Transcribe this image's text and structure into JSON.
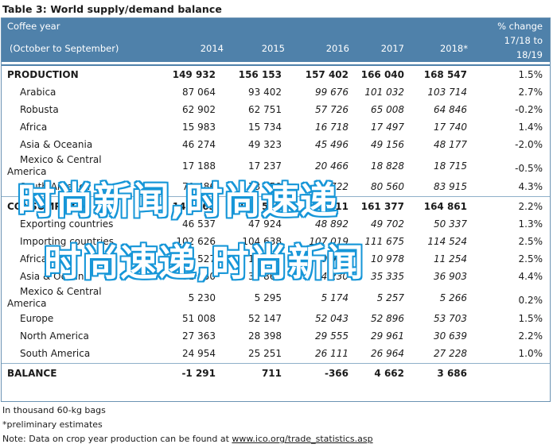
{
  "title": "Table 3:  World supply/demand balance",
  "header": {
    "left_top": "Coffee year",
    "left_bottom": "(October to September)",
    "years": [
      "2014",
      "2015",
      "2016",
      "2017",
      "2018*"
    ],
    "pct_top": "% change",
    "pct_mid": "17/18 to",
    "pct_bottom": "18/19"
  },
  "rows": [
    {
      "label": "PRODUCTION",
      "type": "head",
      "values": [
        "149 932",
        "156 153",
        "157 402",
        "166 040",
        "168 547"
      ],
      "pct": "1.5%"
    },
    {
      "label": "Arabica",
      "type": "sub",
      "values": [
        "87 064",
        "93 402",
        "99 676",
        "101 032",
        "103 714"
      ],
      "pct": "2.7%"
    },
    {
      "label": "Robusta",
      "type": "sub",
      "values": [
        "62 902",
        "62 751",
        "57 726",
        "65 008",
        "64 846"
      ],
      "pct": "-0.2%"
    },
    {
      "label": "Africa",
      "type": "sub",
      "values": [
        "15 983",
        "15 734",
        "16 718",
        "17 497",
        "17 740"
      ],
      "pct": "1.4%"
    },
    {
      "label": "Asia & Oceania",
      "type": "sub",
      "values": [
        "46 274",
        "49 323",
        "45 496",
        "49 156",
        "48 177"
      ],
      "pct": "-2.0%"
    },
    {
      "label_line1": "Mexico & Central",
      "label_line2": "America",
      "type": "sub2",
      "values": [
        "17 188",
        "17 237",
        "20 466",
        "18 828",
        "18 715"
      ],
      "pct": "-0.5%"
    },
    {
      "label": "South America",
      "type": "sub",
      "values": [
        "70 486",
        "73 859",
        "74 722",
        "80 560",
        "83 915"
      ],
      "pct": "4.3%"
    },
    {
      "label": "CONSUMPTION",
      "type": "head",
      "values": [
        "149 163",
        "152 562",
        "155 911",
        "161 377",
        "164 861"
      ],
      "pct": "2.2%"
    },
    {
      "label": "Exporting countries",
      "type": "sub",
      "values": [
        "46 537",
        "47 924",
        "48 892",
        "49 702",
        "50 337"
      ],
      "pct": "1.3%"
    },
    {
      "label": "Importing countries",
      "type": "sub",
      "values": [
        "102 626",
        "104 638",
        "107 019",
        "111 675",
        "114 524"
      ],
      "pct": "2.5%"
    },
    {
      "label": "Africa",
      "type": "sub",
      "values": [
        "10 527",
        "10 750",
        "10 914",
        "10 978",
        "11 254"
      ],
      "pct": "2.5%"
    },
    {
      "label": "Asia & Oceania",
      "type": "sub",
      "values": [
        "31 950",
        "32 863",
        "34 230",
        "35 335",
        "36 903"
      ],
      "pct": "4.4%"
    },
    {
      "label_line1": "Mexico & Central",
      "label_line2": "America",
      "type": "sub2",
      "values": [
        "5 230",
        "5 295",
        "5 174",
        "5 257",
        "5 266"
      ],
      "pct": "0.2%"
    },
    {
      "label": "Europe",
      "type": "sub",
      "values": [
        "51 008",
        "52 147",
        "52 043",
        "52 896",
        "53 703"
      ],
      "pct": "1.5%"
    },
    {
      "label": "North America",
      "type": "sub",
      "values": [
        "27 363",
        "28 398",
        "29 555",
        "29 961",
        "30 639"
      ],
      "pct": "2.2%"
    },
    {
      "label": "South America",
      "type": "sub",
      "values": [
        "24 954",
        "25 251",
        "26 111",
        "26 964",
        "27 228"
      ],
      "pct": "1.0%"
    },
    {
      "label": "BALANCE",
      "type": "head",
      "values": [
        "-1 291",
        "711",
        "-366",
        "4 662",
        "3 686"
      ],
      "pct": ""
    }
  ],
  "footer": {
    "note1": "In thousand 60-kg bags",
    "note2": "*preliminary estimates",
    "note3_prefix": "Note: Data on crop year production can be found at ",
    "note3_link": "www.ico.org/trade_statistics.asp"
  },
  "watermark": {
    "line1": "时尚新闻,时尚速递",
    "line2": "时尚速递,时尚新闻"
  }
}
